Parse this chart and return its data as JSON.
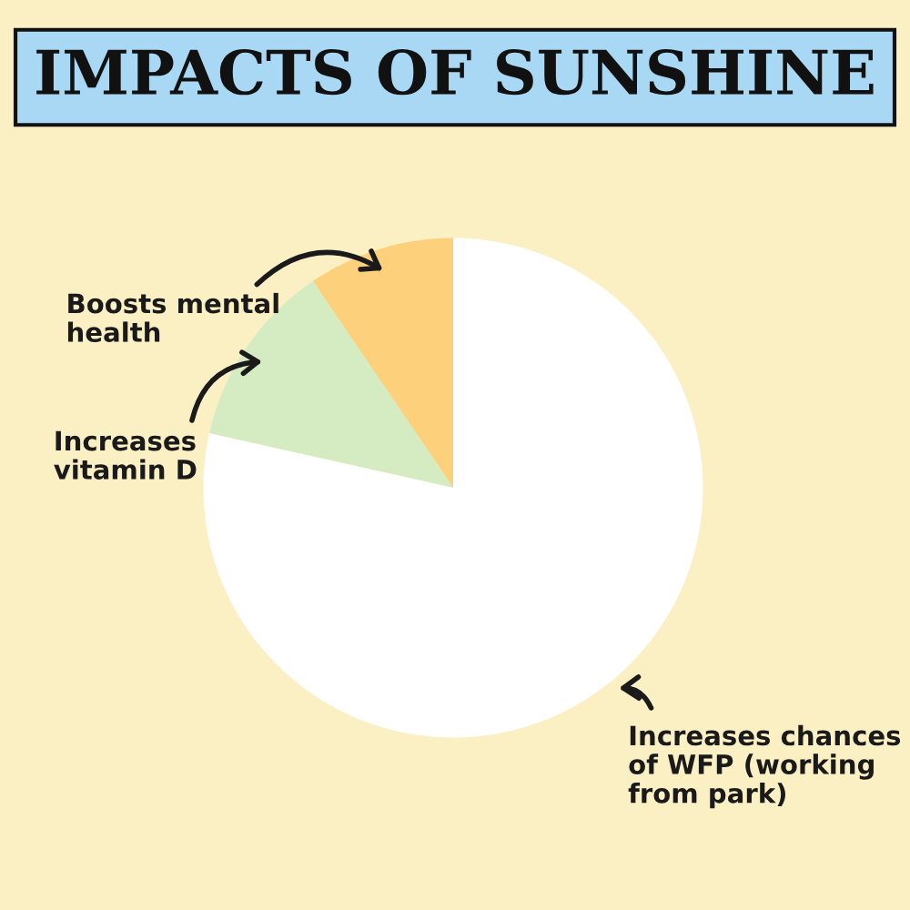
{
  "chart_data": {
    "type": "pie",
    "title": "IMPACTS OF SUNSHINE",
    "categories": [
      "Boosts mental\nhealth",
      "Increases\nvitamin D",
      "Increases chances\nof WFP (working\nfrom park)"
    ],
    "values": [
      9.5,
      12,
      78.5
    ],
    "colors": [
      "#fdd07c",
      "#d5ecc2",
      "#ffffff"
    ],
    "legend": false
  }
}
